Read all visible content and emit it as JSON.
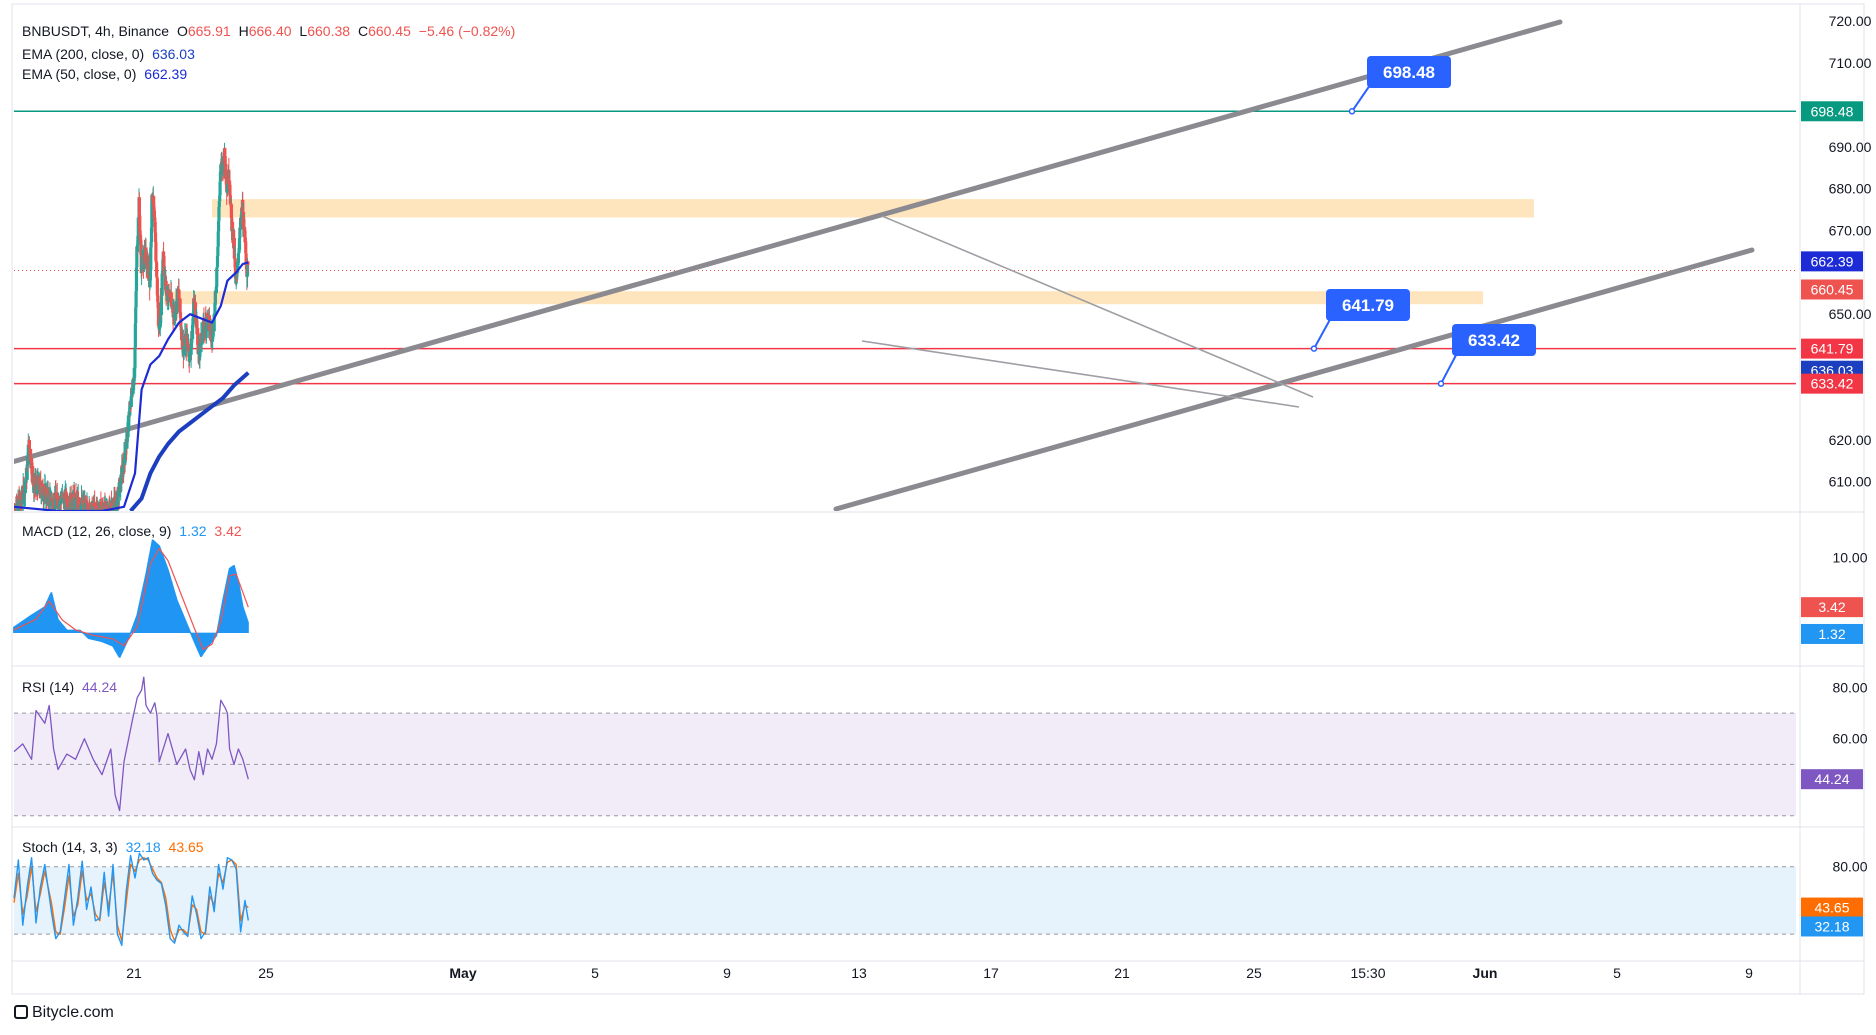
{
  "header": {
    "symbol": "BNBUSDT, 4h, Binance",
    "open_label": "O",
    "open": "665.91",
    "high_label": "H",
    "high": "666.40",
    "low_label": "L",
    "low": "660.38",
    "close_label": "C",
    "close": "660.45",
    "change": "−5.46 (−0.82%)",
    "ema200_label": "EMA (200, close, 0)",
    "ema200_value": "636.03",
    "ema50_label": "EMA (50, close, 0)",
    "ema50_value": "662.39"
  },
  "panes": {
    "macd_label": "MACD (12, 26, close, 9)",
    "macd_value": "1.32",
    "macd_signal": "3.42",
    "rsi_label": "RSI (14)",
    "rsi_value": "44.24",
    "stoch_label": "Stoch (14, 3, 3)",
    "stoch_k": "32.18",
    "stoch_d": "43.65"
  },
  "footer": {
    "brand": "Bitycle.com"
  },
  "colors": {
    "up": "#26a69a",
    "down": "#ef5350",
    "ema50": "#1c2bd6",
    "ema200": "#1c3fc0",
    "resistance": "#089981",
    "support": "#f23645",
    "callout": "#2962ff",
    "channel": "#8a8a90",
    "zone": "#ffe0b2",
    "rsi": "#7e57c2",
    "stoch_k": "#2196f3",
    "stoch_d": "#ff6d00",
    "macd_hist": "#2196f3"
  },
  "chart_data": {
    "type": "candlestick",
    "title": "BNBUSDT, 4h, Binance",
    "x_ticks": [
      "21",
      "25",
      "May",
      "5",
      "9",
      "13",
      "17",
      "21",
      "25",
      "15:30",
      "Jun",
      "5",
      "9"
    ],
    "price_axis": {
      "ticks": [
        "720.00",
        "710.00",
        "690.00",
        "680.00",
        "670.00",
        "650.00",
        "620.00",
        "610.00"
      ],
      "range": [
        603,
        721
      ]
    },
    "price_path": [
      [
        0,
        603
      ],
      [
        4,
        606
      ],
      [
        6,
        612
      ],
      [
        7,
        620
      ],
      [
        9,
        609
      ],
      [
        11,
        609
      ],
      [
        16,
        606
      ],
      [
        18,
        605
      ],
      [
        22,
        606
      ],
      [
        26,
        605
      ],
      [
        30,
        605
      ],
      [
        34,
        603
      ],
      [
        38,
        603
      ],
      [
        44,
        603
      ],
      [
        47,
        605
      ],
      [
        49,
        611
      ],
      [
        51,
        618
      ],
      [
        53,
        628
      ],
      [
        55,
        637
      ],
      [
        56,
        665
      ],
      [
        57,
        676
      ],
      [
        58,
        662
      ],
      [
        60,
        664
      ],
      [
        62,
        658
      ],
      [
        63,
        680
      ],
      [
        64,
        672
      ],
      [
        65,
        660
      ],
      [
        66,
        646
      ],
      [
        67,
        652
      ],
      [
        68,
        666
      ],
      [
        69,
        656
      ],
      [
        71,
        654
      ],
      [
        73,
        650
      ],
      [
        75,
        655
      ],
      [
        76,
        648
      ],
      [
        77,
        642
      ],
      [
        79,
        644
      ],
      [
        80,
        640
      ],
      [
        81,
        644
      ],
      [
        82,
        654
      ],
      [
        83,
        649
      ],
      [
        84,
        640
      ],
      [
        86,
        646
      ],
      [
        88,
        649
      ],
      [
        90,
        645
      ],
      [
        91,
        648
      ],
      [
        92,
        656
      ],
      [
        93,
        670
      ],
      [
        94,
        684
      ],
      [
        96,
        688
      ],
      [
        97,
        680
      ],
      [
        98,
        684
      ],
      [
        99,
        672
      ],
      [
        100,
        668
      ],
      [
        101,
        656
      ],
      [
        102,
        664
      ],
      [
        103,
        670
      ],
      [
        104,
        676
      ],
      [
        105,
        668
      ],
      [
        106,
        661
      ],
      [
        106.5,
        660.45
      ]
    ],
    "ema50_path": [
      [
        0,
        604
      ],
      [
        20,
        603
      ],
      [
        40,
        603
      ],
      [
        50,
        604
      ],
      [
        55,
        612
      ],
      [
        58,
        632
      ],
      [
        62,
        638
      ],
      [
        66,
        640
      ],
      [
        70,
        644
      ],
      [
        75,
        648
      ],
      [
        80,
        650
      ],
      [
        85,
        649
      ],
      [
        90,
        648
      ],
      [
        94,
        652
      ],
      [
        97,
        658
      ],
      [
        101,
        660
      ],
      [
        104,
        662
      ],
      [
        106.5,
        662.39
      ]
    ],
    "ema200_path": [
      [
        53,
        603
      ],
      [
        58,
        606
      ],
      [
        62,
        612
      ],
      [
        66,
        616
      ],
      [
        70,
        619
      ],
      [
        75,
        622
      ],
      [
        80,
        624
      ],
      [
        85,
        626
      ],
      [
        90,
        628
      ],
      [
        95,
        630
      ],
      [
        100,
        633
      ],
      [
        106.5,
        636.03
      ]
    ],
    "levels": [
      {
        "name": "resistance",
        "price": 698.48,
        "label": "698.48"
      },
      {
        "name": "support-1",
        "price": 641.79,
        "label": "641.79"
      },
      {
        "name": "support-2",
        "price": 633.42,
        "label": "633.42"
      }
    ],
    "axis_badges": [
      "698.48",
      "662.39",
      "660.45",
      "641.79",
      "636.03",
      "633.42"
    ],
    "macd": {
      "label": "MACD (12, 26, close, 9)",
      "macd": 1.32,
      "signal": 3.42,
      "axis_ticks": [
        "10.00"
      ],
      "range": [
        -4,
        15
      ],
      "hist_path": [
        [
          0,
          0.8
        ],
        [
          8,
          2.4
        ],
        [
          14,
          3.5
        ],
        [
          17,
          5.4
        ],
        [
          20,
          1.8
        ],
        [
          24,
          0.4
        ],
        [
          30,
          0.4
        ],
        [
          34,
          -0.8
        ],
        [
          40,
          -1.2
        ],
        [
          45,
          -1.8
        ],
        [
          48,
          -3.3
        ],
        [
          52,
          -0.8
        ],
        [
          56,
          2.4
        ],
        [
          60,
          7.8
        ],
        [
          63,
          12.4
        ],
        [
          66,
          11.6
        ],
        [
          70,
          8.4
        ],
        [
          74,
          4.4
        ],
        [
          78,
          1.6
        ],
        [
          82,
          -1.2
        ],
        [
          85,
          -3.2
        ],
        [
          88,
          -1.9
        ],
        [
          92,
          -0.4
        ],
        [
          95,
          4.4
        ],
        [
          98,
          8.6
        ],
        [
          100,
          9.0
        ],
        [
          102,
          6.8
        ],
        [
          104,
          3.5
        ],
        [
          106.5,
          1.32
        ]
      ],
      "signal_path": [
        [
          0,
          0.4
        ],
        [
          10,
          1.8
        ],
        [
          16,
          4.2
        ],
        [
          22,
          1.7
        ],
        [
          28,
          0.4
        ],
        [
          36,
          -0.3
        ],
        [
          45,
          -0.8
        ],
        [
          50,
          -1.7
        ],
        [
          56,
          0.8
        ],
        [
          62,
          9.2
        ],
        [
          66,
          11.2
        ],
        [
          70,
          9.6
        ],
        [
          76,
          5.1
        ],
        [
          82,
          0.6
        ],
        [
          86,
          -2.2
        ],
        [
          90,
          -1.5
        ],
        [
          94,
          1.5
        ],
        [
          98,
          7.6
        ],
        [
          101,
          7.8
        ],
        [
          106.5,
          3.42
        ]
      ]
    },
    "rsi": {
      "label": "RSI (14)",
      "value": 44.24,
      "range": [
        26,
        86
      ],
      "axis_ticks": [
        "80.00",
        "60.00"
      ],
      "band": [
        30,
        70
      ],
      "midline": 50,
      "path": [
        [
          0,
          55
        ],
        [
          4,
          58
        ],
        [
          8,
          52
        ],
        [
          10,
          71
        ],
        [
          14,
          66
        ],
        [
          16,
          73
        ],
        [
          18,
          56
        ],
        [
          20,
          48
        ],
        [
          24,
          54
        ],
        [
          28,
          52
        ],
        [
          32,
          60
        ],
        [
          36,
          52
        ],
        [
          40,
          46
        ],
        [
          44,
          56
        ],
        [
          46,
          38
        ],
        [
          48,
          32
        ],
        [
          50,
          51
        ],
        [
          54,
          68
        ],
        [
          56,
          76
        ],
        [
          58,
          79
        ],
        [
          59,
          84
        ],
        [
          60,
          73
        ],
        [
          62,
          70
        ],
        [
          64,
          74
        ],
        [
          65,
          69
        ],
        [
          66,
          51
        ],
        [
          70,
          62
        ],
        [
          74,
          50
        ],
        [
          78,
          56
        ],
        [
          80,
          48
        ],
        [
          82,
          44
        ],
        [
          84,
          55
        ],
        [
          86,
          46
        ],
        [
          88,
          56
        ],
        [
          90,
          52
        ],
        [
          92,
          58
        ],
        [
          94,
          75
        ],
        [
          96,
          72
        ],
        [
          97,
          70
        ],
        [
          98,
          56
        ],
        [
          100,
          50
        ],
        [
          102,
          56
        ],
        [
          104,
          52
        ],
        [
          106.5,
          44.24
        ]
      ]
    },
    "stoch": {
      "label": "Stoch (14, 3, 3)",
      "k": 32.18,
      "d": 43.65,
      "range": [
        -3,
        110
      ],
      "axis_ticks": [
        "80.00"
      ],
      "band": [
        20,
        80
      ],
      "k_path": [
        [
          0,
          52
        ],
        [
          2,
          86
        ],
        [
          4,
          28
        ],
        [
          6,
          62
        ],
        [
          8,
          88
        ],
        [
          10,
          30
        ],
        [
          12,
          62
        ],
        [
          14,
          82
        ],
        [
          17,
          40
        ],
        [
          19,
          16
        ],
        [
          21,
          22
        ],
        [
          23,
          52
        ],
        [
          25,
          82
        ],
        [
          27,
          28
        ],
        [
          29,
          52
        ],
        [
          31,
          85
        ],
        [
          33,
          42
        ],
        [
          35,
          62
        ],
        [
          37,
          32
        ],
        [
          39,
          34
        ],
        [
          41,
          75
        ],
        [
          43,
          36
        ],
        [
          45,
          82
        ],
        [
          47,
          20
        ],
        [
          49,
          10
        ],
        [
          51,
          58
        ],
        [
          53,
          90
        ],
        [
          55,
          70
        ],
        [
          57,
          92
        ],
        [
          59,
          86
        ],
        [
          61,
          88
        ],
        [
          63,
          74
        ],
        [
          65,
          68
        ],
        [
          67,
          65
        ],
        [
          69,
          45
        ],
        [
          71,
          16
        ],
        [
          73,
          12
        ],
        [
          75,
          28
        ],
        [
          77,
          22
        ],
        [
          79,
          18
        ],
        [
          81,
          54
        ],
        [
          83,
          38
        ],
        [
          85,
          16
        ],
        [
          87,
          22
        ],
        [
          89,
          62
        ],
        [
          91,
          40
        ],
        [
          93,
          82
        ],
        [
          95,
          60
        ],
        [
          97,
          88
        ],
        [
          99,
          86
        ],
        [
          101,
          78
        ],
        [
          103,
          22
        ],
        [
          105,
          50
        ],
        [
          106.5,
          32.18
        ]
      ],
      "d_path": [
        [
          0,
          48
        ],
        [
          2,
          74
        ],
        [
          4,
          38
        ],
        [
          6,
          54
        ],
        [
          8,
          80
        ],
        [
          10,
          40
        ],
        [
          12,
          56
        ],
        [
          14,
          76
        ],
        [
          17,
          48
        ],
        [
          19,
          22
        ],
        [
          21,
          20
        ],
        [
          23,
          44
        ],
        [
          25,
          72
        ],
        [
          27,
          36
        ],
        [
          29,
          46
        ],
        [
          31,
          76
        ],
        [
          33,
          50
        ],
        [
          35,
          56
        ],
        [
          37,
          38
        ],
        [
          39,
          32
        ],
        [
          41,
          66
        ],
        [
          43,
          44
        ],
        [
          45,
          74
        ],
        [
          47,
          28
        ],
        [
          49,
          14
        ],
        [
          51,
          48
        ],
        [
          53,
          82
        ],
        [
          55,
          76
        ],
        [
          57,
          86
        ],
        [
          59,
          88
        ],
        [
          61,
          86
        ],
        [
          63,
          78
        ],
        [
          65,
          70
        ],
        [
          67,
          66
        ],
        [
          69,
          52
        ],
        [
          71,
          24
        ],
        [
          73,
          14
        ],
        [
          75,
          24
        ],
        [
          77,
          24
        ],
        [
          79,
          20
        ],
        [
          81,
          46
        ],
        [
          83,
          42
        ],
        [
          85,
          22
        ],
        [
          87,
          20
        ],
        [
          89,
          54
        ],
        [
          91,
          46
        ],
        [
          93,
          74
        ],
        [
          95,
          66
        ],
        [
          97,
          84
        ],
        [
          99,
          86
        ],
        [
          101,
          82
        ],
        [
          103,
          32
        ],
        [
          105,
          46
        ],
        [
          106.5,
          43.65
        ]
      ]
    }
  }
}
